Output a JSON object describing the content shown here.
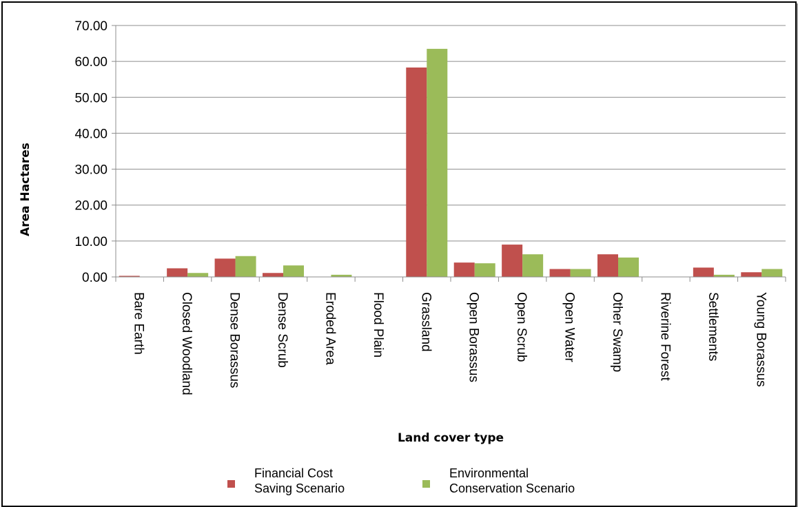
{
  "chart_data": {
    "type": "bar",
    "categories": [
      "Bare Earth",
      "Closed Woodland",
      "Dense Borassus",
      "Dense Scrub",
      "Eroded Area",
      "Flood Plain",
      "Grassland",
      "Open Borassus",
      "Open Scrub",
      "Open Water",
      "Other Swamp",
      "Riverine Forest",
      "Settlements",
      "Young Borassus"
    ],
    "series": [
      {
        "name": "Financial Cost Saving Scenario",
        "name_lines": [
          "Financial Cost",
          "Saving Scenario"
        ],
        "color": "#c0504d",
        "values": [
          0.3,
          2.4,
          5.1,
          1.1,
          0,
          0,
          58.3,
          4.0,
          9.0,
          2.2,
          6.3,
          0,
          2.6,
          1.3
        ]
      },
      {
        "name": "Environmental Conservation Scenario",
        "name_lines": [
          "Environmental",
          "Conservation Scenario"
        ],
        "color": "#9bbb59",
        "values": [
          0,
          1.1,
          5.8,
          3.2,
          0.6,
          0,
          63.5,
          3.8,
          6.3,
          2.2,
          5.4,
          0,
          0.6,
          2.2
        ]
      }
    ],
    "yticks": [
      "0.00",
      "10.00",
      "20.00",
      "30.00",
      "40.00",
      "50.00",
      "60.00",
      "70.00"
    ],
    "ylim": [
      0,
      70
    ],
    "xlabel": "Land cover type",
    "ylabel": "Area Hactares",
    "grid": true,
    "legend": "bottom"
  }
}
